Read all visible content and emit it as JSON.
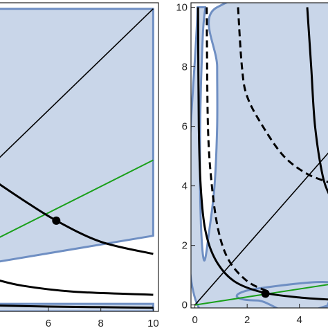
{
  "colors": {
    "region_fill": "#c9d6e9",
    "region_edge": "#6f8fc3",
    "curve": "#000000",
    "green_line": "#1aa01a",
    "frame": "#222222"
  },
  "chart_data": [
    {
      "type": "line",
      "panel": "left",
      "title": "",
      "xlabel": "",
      "ylabel": "",
      "xlim": [
        4.1,
        10.2
      ],
      "ylim": [
        0,
        10.2
      ],
      "x_ticks": [
        6,
        8,
        10
      ],
      "x_tick_labels": [
        "6",
        "8",
        "10"
      ],
      "y_ticks": [],
      "region_outline": [
        [
          3.8,
          10
        ],
        [
          10,
          10
        ],
        [
          10,
          2.5
        ],
        [
          3.8,
          1.6
        ]
      ],
      "region_bottom_band": [
        [
          3.8,
          0.25
        ],
        [
          10,
          0.25
        ],
        [
          10,
          0
        ],
        [
          3.8,
          0
        ]
      ],
      "series": [
        {
          "style": "thin-black",
          "points": [
            [
              3.8,
              4.8
            ],
            [
              10,
              10
            ]
          ]
        },
        {
          "style": "green",
          "points": [
            [
              3.8,
              2.3
            ],
            [
              10,
              5.0
            ]
          ]
        },
        {
          "style": "thick-black",
          "points": [
            [
              3.8,
              4.4
            ],
            [
              5,
              3.7
            ],
            [
              6.3,
              3.0
            ],
            [
              8,
              2.3
            ],
            [
              10,
              1.9
            ]
          ]
        },
        {
          "style": "thick-black",
          "points": [
            [
              3.8,
              1.1
            ],
            [
              5,
              0.85
            ],
            [
              7,
              0.65
            ],
            [
              10,
              0.55
            ]
          ]
        },
        {
          "style": "thick-black",
          "points": [
            [
              3.8,
              0.2
            ],
            [
              6,
              0.16
            ],
            [
              8,
              0.14
            ],
            [
              10,
              0.12
            ]
          ]
        }
      ],
      "markers": [
        {
          "x": 6.3,
          "y": 3.0
        }
      ]
    },
    {
      "type": "line",
      "panel": "right",
      "title": "",
      "xlabel": "",
      "ylabel": "",
      "xlim": [
        -0.15,
        5.2
      ],
      "ylim": [
        -0.1,
        10.15
      ],
      "x_ticks": [
        0,
        2,
        4
      ],
      "x_tick_labels": [
        "0",
        "2",
        "4"
      ],
      "y_ticks": [
        0,
        2,
        4,
        6,
        8,
        10
      ],
      "y_tick_labels": [
        "0",
        "2",
        "4",
        "6",
        "8",
        "10"
      ],
      "region_boundary": [
        [
          0.1,
          10
        ],
        [
          0.1,
          0
        ],
        [
          5.2,
          0
        ],
        [
          5.2,
          0.75
        ],
        [
          2.4,
          0.55
        ],
        [
          1.6,
          0.3
        ],
        [
          2.4,
          0.15
        ],
        [
          5.2,
          0.3
        ],
        [
          5.2,
          10
        ],
        [
          0.85,
          10
        ],
        [
          0.85,
          8
        ],
        [
          0.85,
          6
        ],
        [
          0.75,
          4
        ],
        [
          0.55,
          2.5
        ],
        [
          0.35,
          1.5
        ],
        [
          0.22,
          3
        ],
        [
          0.2,
          6
        ],
        [
          0.3,
          9
        ],
        [
          0.4,
          10
        ]
      ],
      "series": [
        {
          "style": "thin-black",
          "points": [
            [
              0,
              0
            ],
            [
              5.2,
              5.2
            ]
          ]
        },
        {
          "style": "green",
          "points": [
            [
              0,
              0
            ],
            [
              5.2,
              0.7
            ]
          ]
        },
        {
          "style": "thick-black",
          "points": [
            [
              0.12,
              10
            ],
            [
              0.15,
              6
            ],
            [
              0.22,
              4
            ],
            [
              0.4,
              2.5
            ],
            [
              0.8,
              1.5
            ],
            [
              1.5,
              0.8
            ],
            [
              2.6,
              0.42
            ],
            [
              4,
              0.25
            ],
            [
              5.2,
              0.18
            ]
          ]
        },
        {
          "style": "thick-black",
          "points": [
            [
              4.3,
              10
            ],
            [
              4.45,
              8
            ],
            [
              4.6,
              6
            ],
            [
              4.9,
              4.3
            ],
            [
              5.2,
              3.6
            ]
          ]
        },
        {
          "style": "dashed-black",
          "points": [
            [
              0.45,
              10
            ],
            [
              0.5,
              6
            ],
            [
              0.65,
              4
            ],
            [
              0.9,
              2.5
            ],
            [
              1.3,
              1.5
            ],
            [
              2.0,
              0.8
            ],
            [
              2.8,
              0.45
            ]
          ]
        },
        {
          "style": "dashed-black",
          "points": [
            [
              1.65,
              10
            ],
            [
              1.8,
              8
            ],
            [
              2.0,
              7
            ],
            [
              2.6,
              6
            ],
            [
              3.4,
              5
            ],
            [
              4.3,
              4.4
            ],
            [
              5.2,
              4.1
            ]
          ]
        }
      ],
      "markers": [
        {
          "x": 2.7,
          "y": 0.38
        }
      ]
    }
  ]
}
